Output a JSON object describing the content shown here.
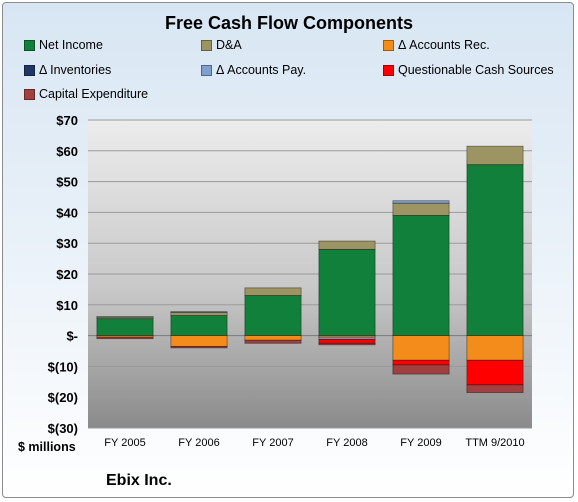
{
  "chart_data": {
    "type": "bar",
    "stacked": true,
    "title": "Free Cash Flow Components",
    "ylabel": "$ millions",
    "footer": "Ebix Inc.",
    "categories": [
      "FY 2005",
      "FY 2006",
      "FY 2007",
      "FY 2008",
      "FY 2009",
      "TTM 9/2010"
    ],
    "ylim": [
      -30,
      70
    ],
    "yticks": [
      70,
      60,
      50,
      40,
      30,
      20,
      10,
      0,
      -10,
      -20,
      -30
    ],
    "ytick_labels": [
      "$70",
      "$60",
      "$50",
      "$40",
      "$30",
      "$20",
      "$10",
      "$-",
      "$(10)",
      "$(20)",
      "$(30)"
    ],
    "legend_placement": "top",
    "grid": true,
    "series": [
      {
        "name": "Net Income",
        "color": "#10803a",
        "values": [
          5.5,
          6.5,
          13,
          28,
          39,
          55.5
        ]
      },
      {
        "name": "D&A",
        "color": "#9c9462",
        "values": [
          0.5,
          1,
          2.5,
          2.7,
          4,
          6
        ]
      },
      {
        "name": "Δ Accounts Rec.",
        "color": "#f48c1c",
        "values": [
          -0.5,
          -3.5,
          -1.5,
          -0.5,
          -8,
          -8
        ]
      },
      {
        "name": "Δ Inventories",
        "color": "#1f3864",
        "values": [
          0,
          0,
          0,
          0,
          0,
          0
        ]
      },
      {
        "name": "Δ Accounts Pay.",
        "color": "#7f9fcf",
        "values": [
          0.2,
          0.3,
          0,
          -0.7,
          0.8,
          0
        ]
      },
      {
        "name": "Questionable Cash Sources",
        "color": "#ff0000",
        "values": [
          0,
          0,
          0,
          -1.3,
          -1.5,
          -8
        ]
      },
      {
        "name": "Capital Expenditure",
        "color": "#a04040",
        "values": [
          -0.5,
          -0.5,
          -1,
          -0.5,
          -3,
          -2.5
        ]
      }
    ]
  }
}
